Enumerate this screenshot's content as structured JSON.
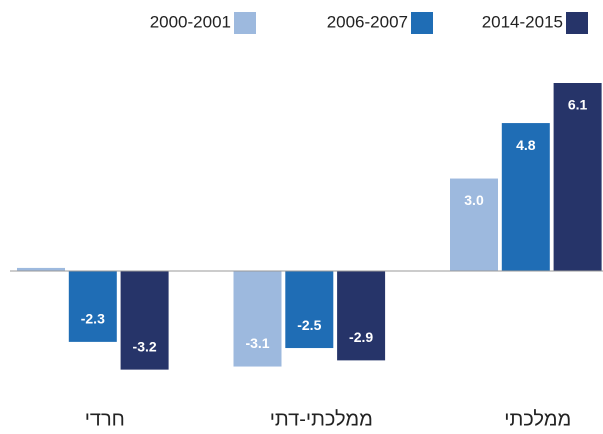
{
  "chart_data": {
    "type": "bar",
    "categories": [
      "חרדי",
      "ממלכתי-דתי",
      "ממלכתי"
    ],
    "series": [
      {
        "name": "2000-2001",
        "color": "#9db9de",
        "values": [
          0.1,
          -3.1,
          3.0
        ],
        "value_labels": [
          null,
          "-3.1",
          "3.0"
        ]
      },
      {
        "name": "2006-2007",
        "color": "#1f6db5",
        "values": [
          -2.3,
          -2.5,
          4.8
        ],
        "value_labels": [
          "-2.3",
          "-2.5",
          "4.8"
        ]
      },
      {
        "name": "2014-2015",
        "color": "#263469",
        "values": [
          -3.2,
          -2.9,
          6.1
        ],
        "value_labels": [
          "-3.2",
          "-2.9",
          "6.1"
        ]
      }
    ]
  }
}
